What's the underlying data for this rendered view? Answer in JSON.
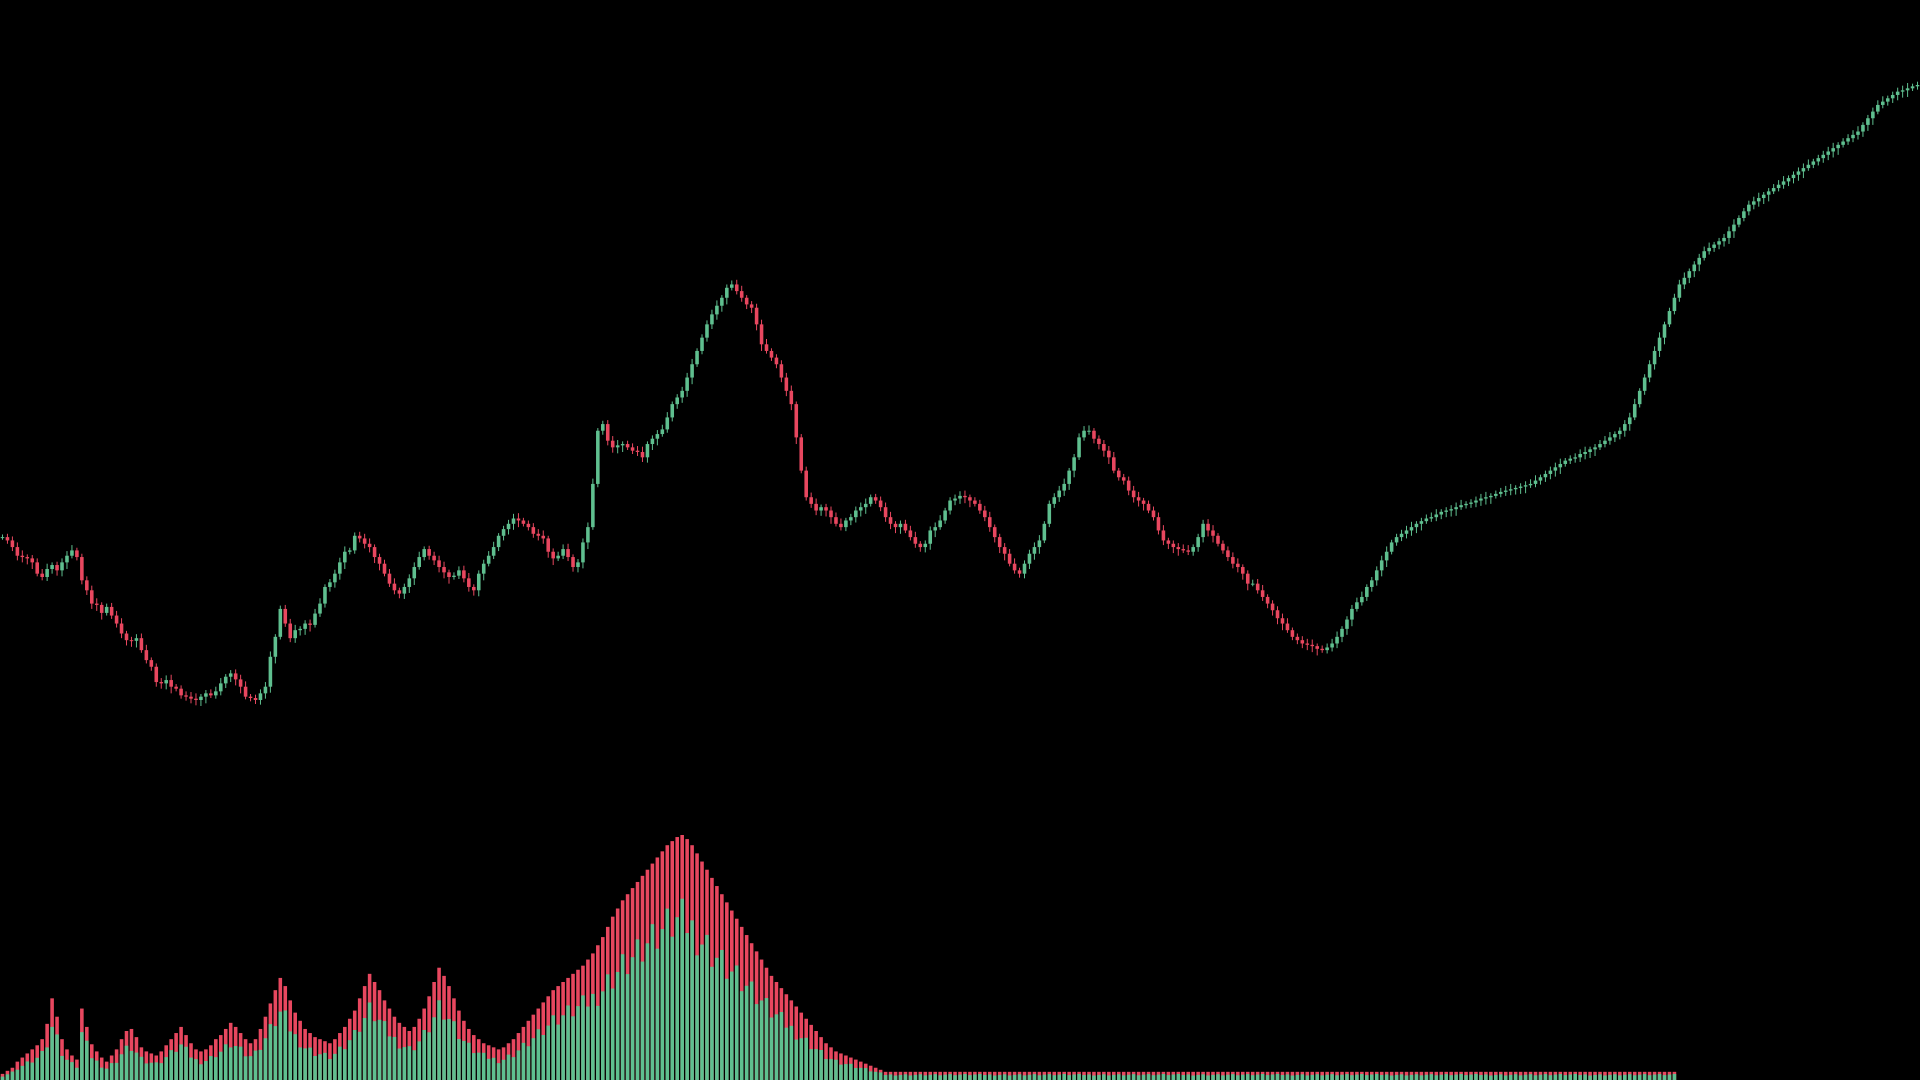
{
  "chart_data": {
    "type": "candlestick",
    "volume_overlay": true,
    "background_color": "#000000",
    "up_color": "#5fbf8f",
    "down_color": "#e8475f",
    "grid": false,
    "axes_visible": false,
    "legend": "none",
    "price_range": [
      0,
      1080
    ],
    "volume_range": [
      0,
      240
    ],
    "closes": [
      400,
      395,
      385,
      372,
      370,
      368,
      362,
      345,
      340,
      352,
      358,
      350,
      362,
      372,
      380,
      370,
      335,
      320,
      300,
      298,
      286,
      295,
      282,
      270,
      255,
      245,
      244,
      248,
      230,
      215,
      205,
      182,
      180,
      185,
      175,
      172,
      162,
      160,
      157,
      155,
      160,
      165,
      162,
      168,
      180,
      190,
      195,
      186,
      175,
      160,
      158,
      155,
      165,
      175,
      220,
      250,
      292,
      270,
      248,
      260,
      262,
      270,
      268,
      285,
      300,
      325,
      332,
      345,
      362,
      378,
      380,
      402,
      398,
      390,
      385,
      370,
      360,
      345,
      330,
      320,
      315,
      325,
      338,
      355,
      370,
      382,
      372,
      365,
      355,
      347,
      340,
      342,
      350,
      338,
      325,
      320,
      345,
      360,
      372,
      385,
      402,
      412,
      420,
      428,
      425,
      420,
      415,
      405,
      402,
      398,
      378,
      368,
      372,
      382,
      370,
      355,
      362,
      392,
      415,
      480,
      560,
      570,
      545,
      535,
      538,
      540,
      535,
      530,
      528,
      520,
      540,
      548,
      555,
      562,
      580,
      600,
      610,
      620,
      640,
      660,
      680,
      700,
      720,
      735,
      748,
      760,
      775,
      780,
      770,
      760,
      750,
      745,
      720,
      690,
      680,
      670,
      660,
      640,
      620,
      600,
      550,
      500,
      460,
      450,
      440,
      445,
      440,
      430,
      420,
      415,
      425,
      430,
      440,
      445,
      450,
      460,
      455,
      445,
      430,
      420,
      415,
      420,
      410,
      400,
      390,
      385,
      390,
      410,
      415,
      425,
      440,
      455,
      458,
      462,
      460,
      455,
      450,
      440,
      430,
      415,
      400,
      385,
      375,
      360,
      350,
      345,
      360,
      375,
      385,
      395,
      420,
      450,
      460,
      470,
      480,
      500,
      520,
      550,
      560,
      560,
      548,
      540,
      530,
      520,
      500,
      490,
      485,
      470,
      460,
      455,
      450,
      440,
      430,
      410,
      395,
      390,
      385,
      382,
      380,
      378,
      385,
      400,
      420,
      410,
      402,
      390,
      380,
      370,
      360,
      355,
      345,
      330,
      330,
      320,
      310,
      300,
      290,
      278,
      270,
      260,
      250,
      245,
      240,
      238,
      236,
      232,
      230,
      234,
      240,
      250,
      262,
      276,
      292,
      302,
      310,
      325,
      335,
      350,
      365,
      378,
      392,
      400,
      405,
      410,
      415,
      420,
      424,
      428,
      430,
      434,
      438,
      440,
      442,
      445,
      448,
      450,
      452,
      455,
      458,
      460,
      462,
      465,
      468,
      470,
      472,
      474,
      476,
      478,
      480,
      485,
      490,
      495,
      500,
      505,
      510,
      515,
      518,
      520,
      525,
      528,
      532,
      535,
      540,
      545,
      550,
      555,
      560,
      570,
      580,
      600,
      620,
      640,
      660,
      680,
      700,
      720,
      740,
      760,
      780,
      790,
      800,
      810,
      820,
      830,
      835,
      840,
      845,
      850,
      860,
      870,
      880,
      890,
      900,
      905,
      910,
      915,
      920,
      925,
      930,
      935,
      940,
      945,
      950,
      955,
      960,
      965,
      970,
      975,
      980,
      985,
      990,
      995,
      1000,
      1005,
      1010,
      1020,
      1030,
      1040,
      1050,
      1055,
      1060,
      1065,
      1070,
      1072,
      1075,
      1078,
      1080
    ],
    "volumes": [
      6,
      9,
      12,
      18,
      22,
      26,
      30,
      34,
      40,
      55,
      80,
      62,
      40,
      30,
      24,
      20,
      70,
      52,
      35,
      28,
      22,
      18,
      24,
      30,
      40,
      48,
      50,
      42,
      32,
      28,
      26,
      24,
      28,
      34,
      40,
      46,
      52,
      44,
      36,
      30,
      28,
      30,
      34,
      40,
      44,
      50,
      56,
      52,
      46,
      40,
      36,
      40,
      50,
      62,
      75,
      88,
      100,
      92,
      78,
      66,
      58,
      50,
      46,
      42,
      40,
      38,
      36,
      40,
      46,
      52,
      60,
      68,
      80,
      92,
      104,
      96,
      88,
      78,
      70,
      62,
      56,
      52,
      48,
      52,
      60,
      70,
      82,
      96,
      110,
      102,
      92,
      80,
      68,
      58,
      50,
      44,
      40,
      36,
      34,
      32,
      30,
      32,
      36,
      40,
      46,
      52,
      58,
      64,
      70,
      76,
      82,
      88,
      92,
      96,
      100,
      104,
      108,
      112,
      118,
      124,
      132,
      140,
      150,
      160,
      168,
      176,
      182,
      188,
      194,
      200,
      206,
      212,
      218,
      224,
      230,
      234,
      238,
      240,
      236,
      230,
      222,
      214,
      206,
      198,
      190,
      182,
      174,
      166,
      158,
      150,
      142,
      134,
      126,
      118,
      110,
      102,
      96,
      90,
      84,
      78,
      72,
      66,
      60,
      54,
      48,
      42,
      36,
      32,
      28,
      26,
      24,
      22,
      20,
      18,
      16,
      14,
      12,
      10,
      8,
      8,
      8,
      8,
      8,
      8,
      8,
      8,
      8,
      8,
      8,
      8,
      8,
      8,
      8,
      8,
      8,
      8,
      8,
      8,
      8,
      8,
      8,
      8,
      8,
      8,
      8,
      8,
      8,
      8,
      8,
      8,
      8,
      8,
      8,
      8,
      8,
      8,
      8,
      8,
      8,
      8,
      8,
      8,
      8,
      8,
      8,
      8,
      8,
      8,
      8,
      8,
      8,
      8,
      8,
      8,
      8,
      8,
      8,
      8,
      8,
      8,
      8,
      8,
      8,
      8,
      8,
      8,
      8,
      8,
      8,
      8,
      8,
      8,
      8,
      8,
      8,
      8,
      8,
      8,
      8,
      8,
      8,
      8,
      8,
      8,
      8,
      8,
      8,
      8,
      8,
      8,
      8,
      8,
      8,
      8,
      8,
      8,
      8,
      8,
      8,
      8,
      8,
      8,
      8,
      8,
      8,
      8,
      8,
      8,
      8,
      8,
      8,
      8,
      8,
      8,
      8,
      8,
      8,
      8,
      8,
      8,
      8,
      8,
      8,
      8,
      8,
      8,
      8,
      8,
      8,
      8,
      8,
      8,
      8,
      8,
      8,
      8,
      8,
      8,
      8,
      8,
      8,
      8,
      8,
      8,
      8,
      8,
      8,
      8,
      8,
      8,
      8,
      8,
      8,
      8,
      8,
      8,
      8,
      8
    ]
  }
}
